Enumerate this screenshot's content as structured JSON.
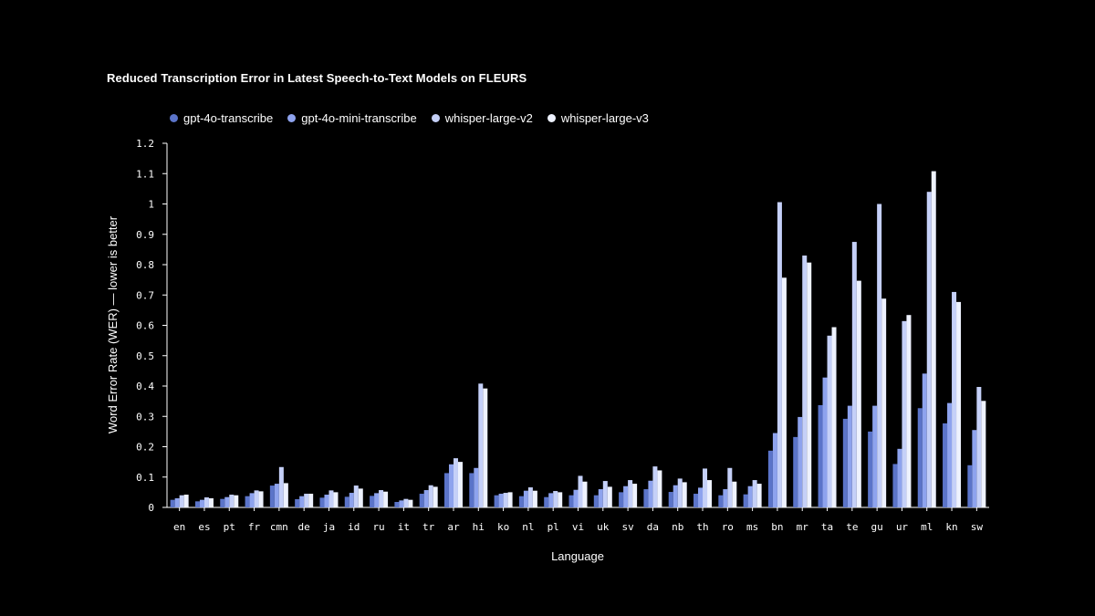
{
  "chart_data": {
    "type": "bar",
    "title": "Reduced Transcription Error in Latest Speech-to-Text Models on FLEURS",
    "xlabel": "Language",
    "ylabel": "Word Error Rate (WER) — lower is better",
    "ylim": [
      0,
      1.2
    ],
    "yticks": [
      "0",
      "0.1",
      "0.2",
      "0.3",
      "0.4",
      "0.5",
      "0.6",
      "0.7",
      "0.8",
      "0.9",
      "1",
      "1.1",
      "1.2"
    ],
    "grid": false,
    "legend_position": "top-left",
    "categories": [
      "en",
      "es",
      "pt",
      "fr",
      "cmn",
      "de",
      "ja",
      "id",
      "ru",
      "it",
      "tr",
      "ar",
      "hi",
      "ko",
      "nl",
      "pl",
      "vi",
      "uk",
      "sv",
      "da",
      "nb",
      "th",
      "ro",
      "ms",
      "bn",
      "mr",
      "ta",
      "te",
      "gu",
      "ur",
      "ml",
      "kn",
      "sw"
    ],
    "series": [
      {
        "name": "gpt-4o-transcribe",
        "color": "#5b74c9",
        "values": [
          0.025,
          0.02,
          0.028,
          0.037,
          0.072,
          0.027,
          0.032,
          0.035,
          0.038,
          0.018,
          0.045,
          0.113,
          0.113,
          0.04,
          0.037,
          0.034,
          0.04,
          0.04,
          0.05,
          0.06,
          0.051,
          0.045,
          0.04,
          0.043,
          0.187,
          0.232,
          0.337,
          0.292,
          0.25,
          0.143,
          0.327,
          0.277,
          0.139
        ]
      },
      {
        "name": "gpt-4o-mini-transcribe",
        "color": "#8ea3ee",
        "values": [
          0.03,
          0.025,
          0.034,
          0.047,
          0.078,
          0.037,
          0.042,
          0.048,
          0.047,
          0.023,
          0.057,
          0.142,
          0.13,
          0.045,
          0.055,
          0.047,
          0.058,
          0.06,
          0.07,
          0.088,
          0.073,
          0.065,
          0.06,
          0.07,
          0.245,
          0.298,
          0.428,
          0.335,
          0.335,
          0.193,
          0.441,
          0.344,
          0.255
        ]
      },
      {
        "name": "whisper-large-v2",
        "color": "#c5d0f8",
        "values": [
          0.04,
          0.033,
          0.042,
          0.056,
          0.133,
          0.045,
          0.056,
          0.072,
          0.057,
          0.028,
          0.073,
          0.162,
          0.408,
          0.048,
          0.066,
          0.054,
          0.104,
          0.087,
          0.09,
          0.135,
          0.095,
          0.128,
          0.13,
          0.09,
          1.006,
          0.83,
          0.566,
          0.875,
          1.0,
          0.614,
          1.04,
          0.71,
          0.397
        ]
      },
      {
        "name": "whisper-large-v3",
        "color": "#eef2ff",
        "values": [
          0.042,
          0.03,
          0.04,
          0.053,
          0.08,
          0.045,
          0.05,
          0.062,
          0.052,
          0.025,
          0.068,
          0.15,
          0.392,
          0.05,
          0.055,
          0.05,
          0.085,
          0.068,
          0.078,
          0.122,
          0.083,
          0.09,
          0.085,
          0.078,
          0.757,
          0.807,
          0.594,
          0.747,
          0.688,
          0.634,
          1.108,
          0.677,
          0.351
        ]
      }
    ]
  }
}
